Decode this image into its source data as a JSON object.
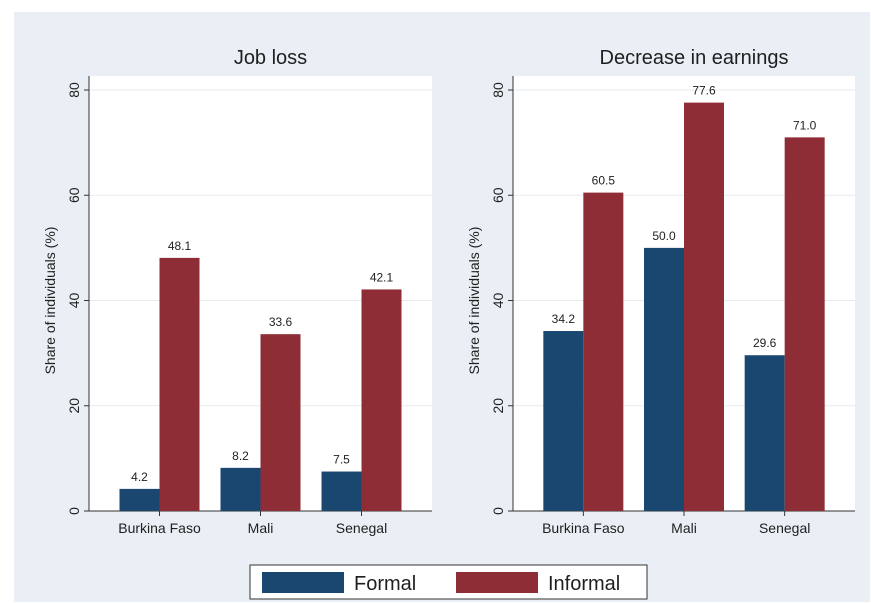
{
  "chart_data": [
    {
      "type": "bar",
      "title": "Job loss",
      "xlabel": "",
      "ylabel": "Share of individuals (%)",
      "categories": [
        "Burkina Faso",
        "Mali",
        "Senegal"
      ],
      "ylim": [
        0,
        80
      ],
      "yticks": [
        0,
        20,
        40,
        60,
        80
      ],
      "grid": true,
      "series": [
        {
          "name": "Formal",
          "values": [
            4.2,
            8.2,
            7.5
          ],
          "labels": [
            "4.2",
            "8.2",
            "7.5"
          ]
        },
        {
          "name": "Informal",
          "values": [
            48.1,
            33.6,
            42.1
          ],
          "labels": [
            "48.1",
            "33.6",
            "42.1"
          ]
        }
      ]
    },
    {
      "type": "bar",
      "title": "Decrease in earnings",
      "xlabel": "",
      "ylabel": "Share of individuals (%)",
      "categories": [
        "Burkina Faso",
        "Mali",
        "Senegal"
      ],
      "ylim": [
        0,
        80
      ],
      "yticks": [
        0,
        20,
        40,
        60,
        80
      ],
      "grid": true,
      "series": [
        {
          "name": "Formal",
          "values": [
            34.2,
            50.0,
            29.6
          ],
          "labels": [
            "34.2",
            "50.0",
            "29.6"
          ]
        },
        {
          "name": "Informal",
          "values": [
            60.5,
            77.6,
            71.0
          ],
          "labels": [
            "60.5",
            "77.6",
            "71.0"
          ]
        }
      ]
    }
  ],
  "legend": {
    "position": "bottom",
    "items": [
      {
        "label": "Formal",
        "color": "#1a4770"
      },
      {
        "label": "Informal",
        "color": "#8f2d37"
      }
    ]
  }
}
